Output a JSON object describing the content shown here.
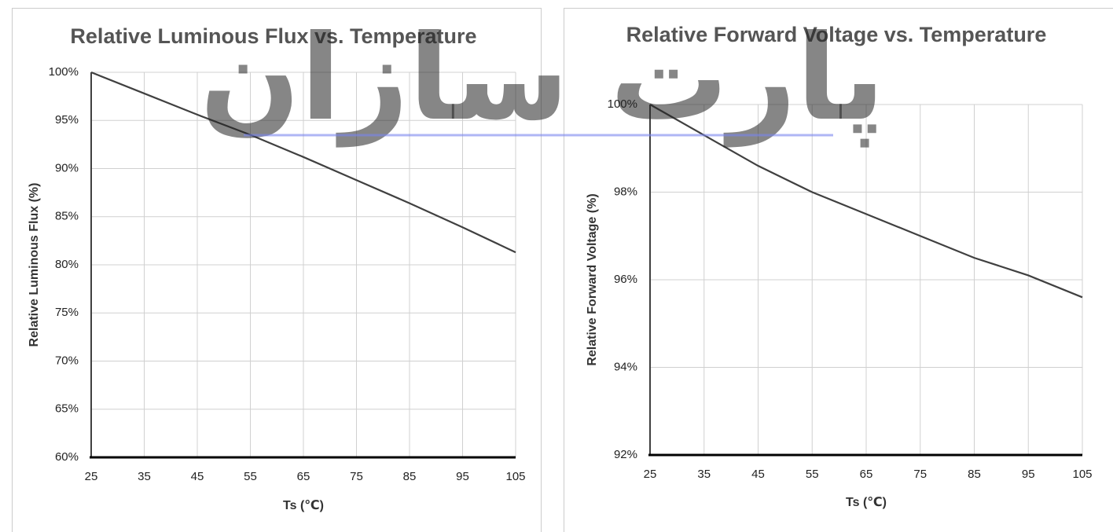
{
  "watermark": "پارت سازان",
  "chart_data": [
    {
      "type": "line",
      "title": "Relative Luminous Flux vs. Temperature",
      "x_label": "Ts (℃)",
      "y_label": "Relative Luminous Flux (%)",
      "x": [
        25,
        35,
        45,
        55,
        65,
        75,
        85,
        95,
        105
      ],
      "series": [
        {
          "name": "Relative Luminous Flux",
          "color": "#404040",
          "values": [
            100,
            97.8,
            95.6,
            93.5,
            91.2,
            88.8,
            86.4,
            83.9,
            81.3
          ]
        }
      ],
      "xlim": [
        25,
        105
      ],
      "xticks": [
        25,
        35,
        45,
        55,
        65,
        75,
        85,
        95,
        105
      ],
      "ylim": [
        60,
        100
      ],
      "yticks": [
        {
          "value": 60,
          "label": "60%"
        },
        {
          "value": 65,
          "label": "65%"
        },
        {
          "value": 70,
          "label": "70%"
        },
        {
          "value": 75,
          "label": "75%"
        },
        {
          "value": 80,
          "label": "80%"
        },
        {
          "value": 85,
          "label": "85%"
        },
        {
          "value": 90,
          "label": "90%"
        },
        {
          "value": 95,
          "label": "95%"
        },
        {
          "value": 100,
          "label": "100%"
        }
      ],
      "grid": true
    },
    {
      "type": "line",
      "title": "Relative Forward Voltage vs. Temperature",
      "x_label": "Ts (℃)",
      "y_label": "Relative Forward Voltage (%)",
      "x": [
        25,
        35,
        45,
        55,
        65,
        75,
        85,
        95,
        105
      ],
      "series": [
        {
          "name": "Relative Forward Voltage",
          "color": "#404040",
          "values": [
            100,
            99.3,
            98.6,
            98.0,
            97.5,
            97.0,
            96.5,
            96.1,
            95.6
          ]
        }
      ],
      "xlim": [
        25,
        105
      ],
      "xticks": [
        25,
        35,
        45,
        55,
        65,
        75,
        85,
        95,
        105
      ],
      "ylim": [
        92,
        100
      ],
      "yticks": [
        {
          "value": 92,
          "label": "92%"
        },
        {
          "value": 94,
          "label": "94%"
        },
        {
          "value": 96,
          "label": "96%"
        },
        {
          "value": 98,
          "label": "98%"
        },
        {
          "value": 100,
          "label": "100%"
        }
      ],
      "grid": true
    }
  ]
}
